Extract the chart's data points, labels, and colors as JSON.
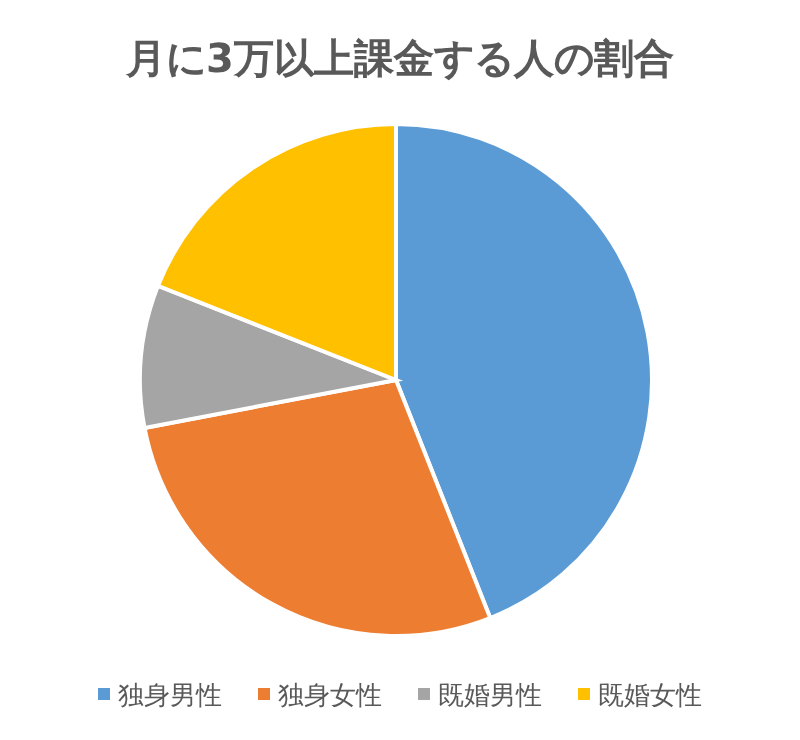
{
  "chart_data": {
    "type": "pie",
    "title": "月に3万以上課金する人の割合",
    "categories": [
      "独身男性",
      "独身女性",
      "既婚男性",
      "既婚女性"
    ],
    "values": [
      44,
      28,
      9,
      19
    ],
    "colors": [
      "#5b9bd5",
      "#ed7d31",
      "#a5a5a5",
      "#ffc000"
    ],
    "legend": "bottom"
  }
}
